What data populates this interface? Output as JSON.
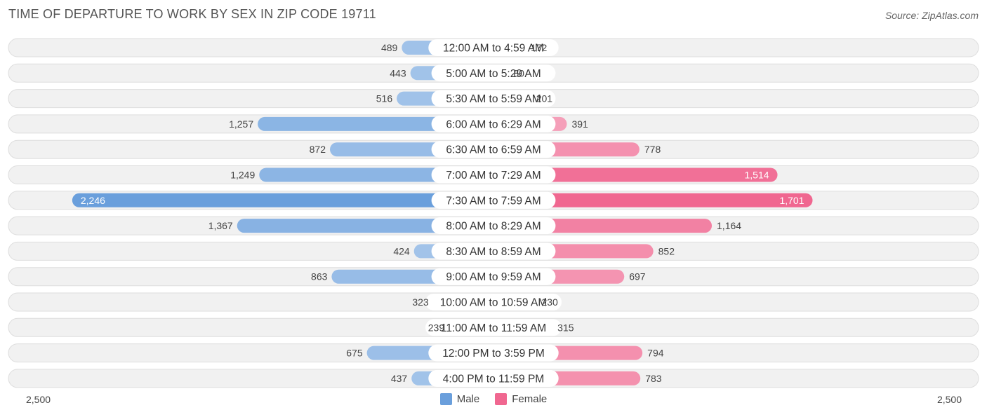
{
  "title": "TIME OF DEPARTURE TO WORK BY SEX IN ZIP CODE 19711",
  "source": "Source: ZipAtlas.com",
  "axis": {
    "left_label": "2,500",
    "right_label": "2,500"
  },
  "legend": {
    "male_label": "Male",
    "female_label": "Female"
  },
  "colors": {
    "male_dark": "#6a9fdc",
    "male_light": "#a9c8eb",
    "female_dark": "#f06790",
    "female_light": "#f6a9c0",
    "row_bg": "#f1f1f1",
    "row_border": "#dddddd"
  },
  "chart_data": {
    "type": "bar",
    "orientation": "horizontal-diverging",
    "title": "TIME OF DEPARTURE TO WORK BY SEX IN ZIP CODE 19711",
    "xlim": [
      -2500,
      2500
    ],
    "categories": [
      "12:00 AM to 4:59 AM",
      "5:00 AM to 5:29 AM",
      "5:30 AM to 5:59 AM",
      "6:00 AM to 6:29 AM",
      "6:30 AM to 6:59 AM",
      "7:00 AM to 7:29 AM",
      "7:30 AM to 7:59 AM",
      "8:00 AM to 8:29 AM",
      "8:30 AM to 8:59 AM",
      "9:00 AM to 9:59 AM",
      "10:00 AM to 10:59 AM",
      "11:00 AM to 11:59 AM",
      "12:00 PM to 3:59 PM",
      "4:00 PM to 11:59 PM"
    ],
    "series": [
      {
        "name": "Male",
        "values": [
          489,
          443,
          516,
          1257,
          872,
          1249,
          2246,
          1367,
          424,
          863,
          323,
          239,
          675,
          437
        ],
        "labels": [
          "489",
          "443",
          "516",
          "1,257",
          "872",
          "1,249",
          "2,246",
          "1,367",
          "424",
          "863",
          "323",
          "239",
          "675",
          "437"
        ]
      },
      {
        "name": "Female",
        "values": [
          172,
          80,
          201,
          391,
          778,
          1514,
          1701,
          1164,
          852,
          697,
          230,
          315,
          794,
          783
        ],
        "labels": [
          "172",
          "80",
          "201",
          "391",
          "778",
          "1,514",
          "1,701",
          "1,164",
          "852",
          "697",
          "230",
          "315",
          "794",
          "783"
        ]
      }
    ],
    "legend_position": "bottom-center"
  }
}
